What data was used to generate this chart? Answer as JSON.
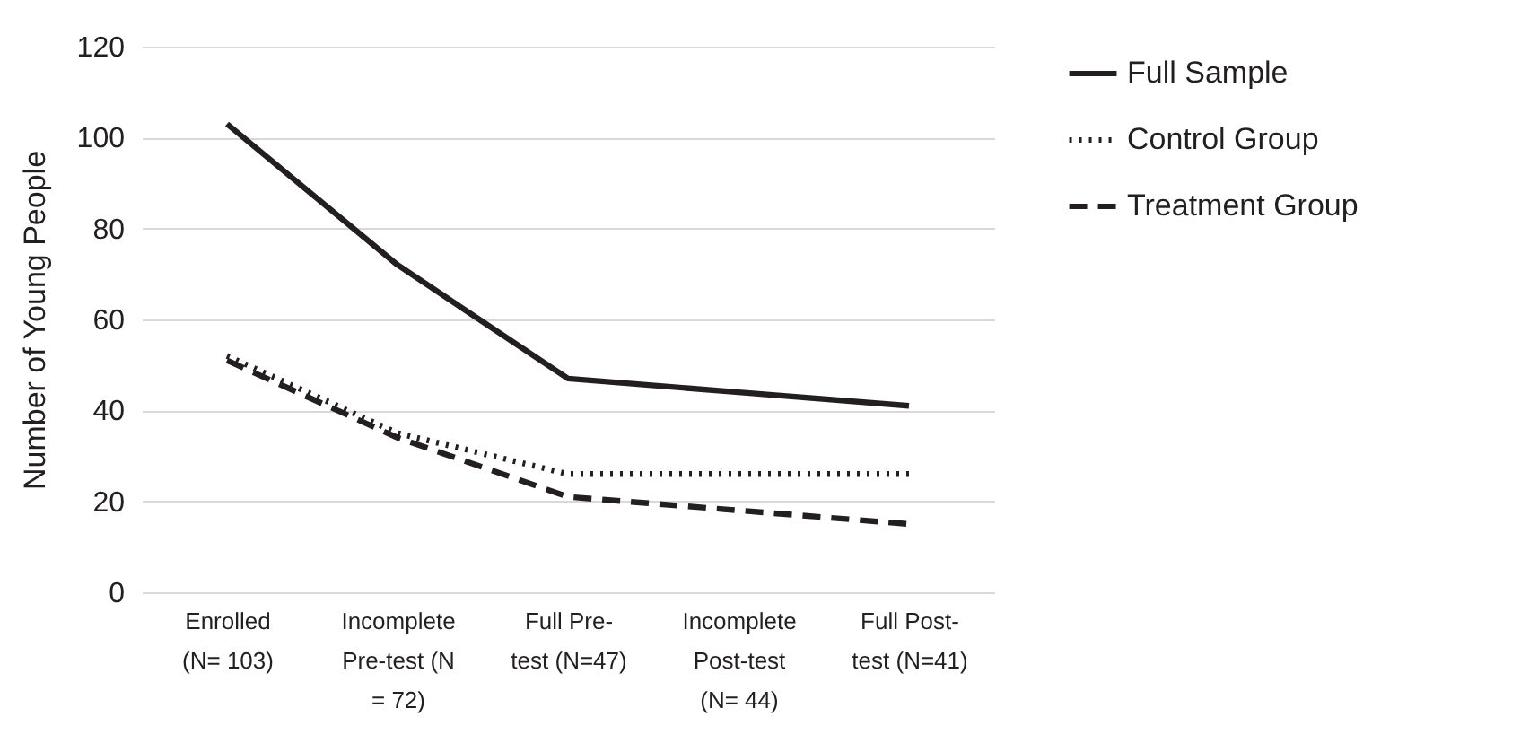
{
  "chart_data": {
    "type": "line",
    "ylabel": "Number of Young People",
    "categories": [
      "Enrolled (N= 103)",
      "Incomplete Pre-test (N = 72)",
      "Full Pre-test (N=47)",
      "Incomplete Post-test (N= 44)",
      "Full Post-test (N=41)"
    ],
    "series": [
      {
        "name": "Full Sample",
        "color": "#231f20",
        "line_style": "solid",
        "values": [
          103,
          72,
          47,
          44,
          41
        ]
      },
      {
        "name": "Control Group",
        "color": "#231f20",
        "line_style": "dotted",
        "values": [
          52,
          35,
          26,
          26,
          26
        ]
      },
      {
        "name": "Treatment Group",
        "color": "#231f20",
        "line_style": "dashed",
        "values": [
          51,
          34,
          21,
          18,
          15
        ]
      }
    ],
    "ylim": [
      0,
      120
    ],
    "yticks": [
      0,
      20,
      40,
      60,
      80,
      100,
      120
    ],
    "grid": "y",
    "legend": "right",
    "marker": "none"
  }
}
